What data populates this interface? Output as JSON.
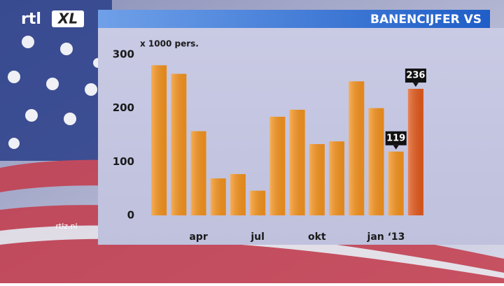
{
  "brand": {
    "rtl": "rtl",
    "xl": "XL"
  },
  "website": "rtlz.nl",
  "chart_data": {
    "type": "bar",
    "title": "BANENCIJFER VS",
    "y_label": "x 1000 pers.",
    "categories": [
      null,
      null,
      "apr",
      null,
      null,
      "jul",
      null,
      null,
      "okt",
      null,
      null,
      "jan ‘13",
      null,
      null
    ],
    "values": [
      280,
      264,
      157,
      69,
      77,
      46,
      184,
      197,
      133,
      138,
      250,
      200,
      119,
      236
    ],
    "value_labels": [
      null,
      null,
      null,
      null,
      null,
      null,
      null,
      null,
      null,
      null,
      null,
      null,
      "119",
      "236"
    ],
    "colors": [
      "#f7941d",
      "#f7941d",
      "#f7941d",
      "#f7941d",
      "#f7941d",
      "#f7941d",
      "#f7941d",
      "#f7941d",
      "#f7941d",
      "#f7941d",
      "#f7941d",
      "#f7941d",
      "#f7941d",
      "#e55a1c"
    ],
    "ylim": [
      0,
      300
    ],
    "yticks": [
      0,
      100,
      200,
      300
    ],
    "grid": false
  }
}
